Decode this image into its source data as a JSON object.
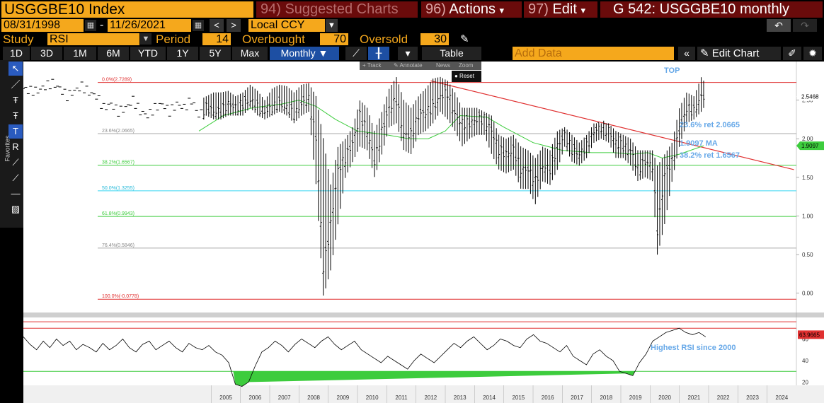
{
  "header": {
    "ticker": "USGGBE10 Index",
    "suggested": {
      "num": "94)",
      "label": "Suggested Charts"
    },
    "actions": {
      "num": "96)",
      "label": "Actions",
      "arrow": "▾"
    },
    "edit": {
      "num": "97)",
      "label": "Edit",
      "arrow": "▾"
    },
    "title": "G 542: USGGBE10 monthly"
  },
  "range": {
    "start": "08/31/1998",
    "dash": "-",
    "end": "11/26/2021",
    "currency": "Local CCY",
    "prev": "<",
    "next": ">",
    "undo": "↶",
    "redo": "↷"
  },
  "study": {
    "label": "Study",
    "value": "RSI",
    "period_label": "Period",
    "period": "14",
    "overbought_label": "Overbought",
    "overbought": "70",
    "oversold_label": "Oversold",
    "oversold": "30"
  },
  "toolbar": {
    "ranges": [
      "1D",
      "3D",
      "1M",
      "6M",
      "YTD",
      "1Y",
      "5Y",
      "Max"
    ],
    "frequency": "Monthly ▼",
    "table": "Table",
    "add_data": "Add Data",
    "collapse": "«",
    "edit_chart": "✎ Edit Chart"
  },
  "mini_toolbar": {
    "track": "+ Track",
    "annotate": "✎ Annotate",
    "news": "News",
    "zoom": "Zoom",
    "reset": "● Reset"
  },
  "favorites_label": "Favorites",
  "colors": {
    "accent": "#f5a81c",
    "header_red": "#6a0b0b",
    "price": "#ffffff",
    "ma": "#3dcc3d",
    "trend": "#e03030",
    "annotation": "#66a8e8",
    "rsi_band": "#e03030",
    "rsi_low": "#3dcc3d"
  },
  "chart_data": [
    {
      "type": "bar",
      "subtype": "ohlc",
      "series": [
        {
          "name": "USGGBE10",
          "x": [
            "1998-08",
            "1998-11",
            "1999-02",
            "1999-05",
            "1999-08",
            "1999-11",
            "2000-02",
            "2000-05",
            "2000-08",
            "2000-11",
            "2001-02",
            "2001-05",
            "2001-08",
            "2001-11",
            "2002-02",
            "2002-05",
            "2002-08",
            "2002-11",
            "2003-02",
            "2003-05",
            "2003-08",
            "2003-11",
            "2004-02",
            "2004-05",
            "2004-08",
            "2004-11",
            "2005-02",
            "2005-05",
            "2005-08",
            "2005-11",
            "2006-02",
            "2006-05",
            "2006-08",
            "2006-11",
            "2007-02",
            "2007-05",
            "2007-08",
            "2007-11",
            "2008-02",
            "2008-05",
            "2008-08",
            "2008-11",
            "2009-02",
            "2009-05",
            "2009-08",
            "2009-11",
            "2010-02",
            "2010-05",
            "2010-08",
            "2010-11",
            "2011-02",
            "2011-05",
            "2011-08",
            "2011-11",
            "2012-02",
            "2012-05",
            "2012-08",
            "2012-11",
            "2013-02",
            "2013-05",
            "2013-08",
            "2013-11",
            "2014-02",
            "2014-05",
            "2014-08",
            "2014-11",
            "2015-02",
            "2015-05",
            "2015-08",
            "2015-11",
            "2016-02",
            "2016-05",
            "2016-08",
            "2016-11",
            "2017-02",
            "2017-05",
            "2017-08",
            "2017-11",
            "2018-02",
            "2018-05",
            "2018-08",
            "2018-11",
            "2019-02",
            "2019-05",
            "2019-08",
            "2019-11",
            "2020-02",
            "2020-04",
            "2020-07",
            "2020-10",
            "2021-01",
            "2021-04",
            "2021-07",
            "2021-10",
            "2021-11"
          ],
          "close": [
            2.65,
            2.62,
            2.62,
            2.68,
            2.72,
            2.65,
            2.55,
            2.62,
            2.68,
            2.6,
            2.55,
            2.4,
            2.45,
            2.35,
            2.4,
            2.5,
            2.35,
            2.3,
            2.4,
            2.45,
            2.35,
            2.45,
            2.4,
            2.5,
            2.3,
            2.4,
            2.35,
            2.35,
            2.45,
            2.4,
            2.45,
            2.5,
            2.4,
            2.35,
            2.4,
            2.45,
            2.4,
            2.3,
            2.45,
            2.5,
            2.0,
            0.3,
            0.9,
            1.6,
            1.75,
            1.95,
            2.3,
            2.1,
            1.7,
            2.1,
            2.4,
            2.5,
            2.05,
            2.05,
            2.3,
            2.35,
            2.4,
            2.55,
            2.6,
            2.3,
            2.2,
            2.2,
            2.25,
            2.25,
            2.1,
            1.85,
            1.8,
            1.85,
            1.6,
            1.6,
            1.45,
            1.65,
            1.6,
            1.9,
            2.05,
            1.85,
            1.8,
            1.9,
            2.1,
            2.15,
            2.1,
            1.95,
            1.9,
            1.85,
            1.6,
            1.7,
            1.65,
            0.8,
            1.55,
            1.7,
            2.1,
            2.4,
            2.35,
            2.55,
            2.55
          ],
          "high": [
            2.75,
            2.7,
            2.7,
            2.75,
            2.8,
            2.72,
            2.65,
            2.7,
            2.75,
            2.68,
            2.65,
            2.55,
            2.55,
            2.5,
            2.5,
            2.6,
            2.5,
            2.45,
            2.55,
            2.55,
            2.5,
            2.55,
            2.55,
            2.6,
            2.5,
            2.55,
            2.6,
            2.6,
            2.62,
            2.55,
            2.6,
            2.7,
            2.62,
            2.5,
            2.65,
            2.7,
            2.68,
            2.6,
            2.7,
            2.72,
            2.55,
            2.0,
            1.4,
            1.9,
            2.0,
            2.15,
            2.5,
            2.4,
            2.1,
            2.35,
            2.65,
            2.8,
            2.5,
            2.4,
            2.55,
            2.65,
            2.78,
            2.8,
            2.75,
            2.6,
            2.4,
            2.4,
            2.4,
            2.35,
            2.3,
            2.05,
            2.0,
            2.05,
            1.9,
            1.85,
            1.75,
            1.9,
            1.85,
            2.1,
            2.15,
            2.05,
            1.95,
            2.05,
            2.2,
            2.2,
            2.2,
            2.1,
            2.05,
            2.0,
            1.85,
            1.85,
            1.85,
            1.65,
            1.8,
            1.95,
            2.4,
            2.6,
            2.55,
            2.8,
            2.75
          ],
          "low": [
            2.55,
            2.52,
            2.55,
            2.6,
            2.62,
            2.55,
            2.45,
            2.5,
            2.55,
            2.5,
            2.4,
            2.3,
            2.35,
            2.25,
            2.3,
            2.35,
            2.25,
            2.2,
            2.3,
            2.3,
            2.25,
            2.35,
            2.3,
            2.35,
            2.15,
            2.3,
            2.25,
            2.25,
            2.3,
            2.3,
            2.3,
            2.4,
            2.3,
            2.25,
            2.3,
            2.35,
            2.3,
            2.2,
            2.3,
            2.35,
            1.4,
            -0.05,
            0.3,
            0.9,
            1.5,
            1.7,
            1.9,
            1.85,
            1.5,
            1.8,
            2.15,
            2.2,
            1.85,
            1.8,
            2.05,
            2.1,
            2.2,
            2.35,
            2.25,
            2.1,
            1.9,
            2.0,
            2.05,
            2.05,
            1.8,
            1.6,
            1.55,
            1.6,
            1.35,
            1.35,
            1.15,
            1.45,
            1.4,
            1.6,
            1.9,
            1.7,
            1.65,
            1.75,
            1.95,
            2.0,
            1.95,
            1.75,
            1.75,
            1.65,
            1.45,
            1.5,
            1.45,
            0.48,
            0.9,
            1.45,
            1.9,
            2.2,
            2.25,
            2.35,
            2.4
          ]
        },
        {
          "name": "MA",
          "label": "1.9097 MA",
          "x": [
            "2004-08",
            "2005-06",
            "2006-06",
            "2007-06",
            "2008-01",
            "2008-08",
            "2009-04",
            "2010-01",
            "2011-01",
            "2011-10",
            "2012-06",
            "2013-01",
            "2013-07",
            "2014-06",
            "2015-01",
            "2016-01",
            "2017-01",
            "2018-01",
            "2018-10",
            "2019-06",
            "2019-12",
            "2020-06",
            "2021-01",
            "2021-11"
          ],
          "values": [
            2.1,
            2.3,
            2.4,
            2.45,
            2.5,
            2.42,
            2.25,
            2.1,
            2.05,
            2.0,
            2.0,
            2.1,
            2.3,
            2.28,
            2.15,
            1.95,
            1.85,
            1.82,
            1.82,
            1.8,
            1.82,
            1.75,
            1.8,
            1.91
          ]
        }
      ],
      "fibonacci": [
        {
          "label": "0.0%(2.7289)",
          "value": 2.7289
        },
        {
          "label": "23.6%(2.0665)",
          "value": 2.0665
        },
        {
          "label": "38.2%(1.6567)",
          "value": 1.6567
        },
        {
          "label": "50.0%(1.3255)",
          "value": 1.3255
        },
        {
          "label": "61.8%(0.9943)",
          "value": 0.9943
        },
        {
          "label": "76.4%(0.5846)",
          "value": 0.5846
        },
        {
          "label": "100.0%(-0.0778)",
          "value": -0.0778
        }
      ],
      "trendline": {
        "from": [
          "2012-07",
          2.75
        ],
        "to": [
          "2024-12",
          1.6
        ]
      },
      "annotations": {
        "top": "TOP",
        "ret236": "23.6% ret 2.0665",
        "ma": "1.9097 MA",
        "ret382": "38.2% ret 1.6567"
      },
      "last_price": "2.5468",
      "last_ma": "1.9097",
      "y_ticks": [
        "2.50",
        "2.00",
        "1.50",
        "1.00",
        "0.50",
        "0.00"
      ],
      "ylim": [
        -0.25,
        3.0
      ]
    },
    {
      "type": "line",
      "name": "RSI",
      "values": [
        62,
        55,
        50,
        58,
        52,
        60,
        54,
        58,
        50,
        55,
        52,
        48,
        56,
        50,
        54,
        60,
        52,
        48,
        55,
        58,
        50,
        54,
        58,
        52,
        48,
        56,
        52,
        50,
        54,
        48,
        45,
        38,
        18,
        16,
        20,
        35,
        48,
        52,
        58,
        54,
        48,
        55,
        60,
        56,
        52,
        58,
        62,
        55,
        50,
        54,
        58,
        50,
        46,
        42,
        38,
        44,
        40,
        36,
        32,
        40,
        46,
        42,
        38,
        44,
        50,
        56,
        52,
        58,
        62,
        56,
        50,
        54,
        60,
        58,
        54,
        52,
        60,
        64,
        58,
        56,
        52,
        48,
        54,
        44,
        40,
        36,
        46,
        50,
        44,
        40,
        30,
        28,
        26,
        38,
        46,
        58,
        62,
        66,
        68,
        70,
        66,
        64,
        66,
        62
      ],
      "last_value": "63.9665",
      "bands": [
        70,
        30
      ],
      "y_ticks": [
        "60",
        "40",
        "20"
      ],
      "annotation": "Highest RSI since 2000",
      "ylim": [
        17,
        80
      ]
    }
  ],
  "x_axis_years": [
    "2005",
    "2006",
    "2007",
    "2008",
    "2009",
    "2010",
    "2011",
    "2012",
    "2013",
    "2014",
    "2015",
    "2016",
    "2017",
    "2018",
    "2019",
    "2020",
    "2021",
    "2022",
    "2023",
    "2024"
  ]
}
